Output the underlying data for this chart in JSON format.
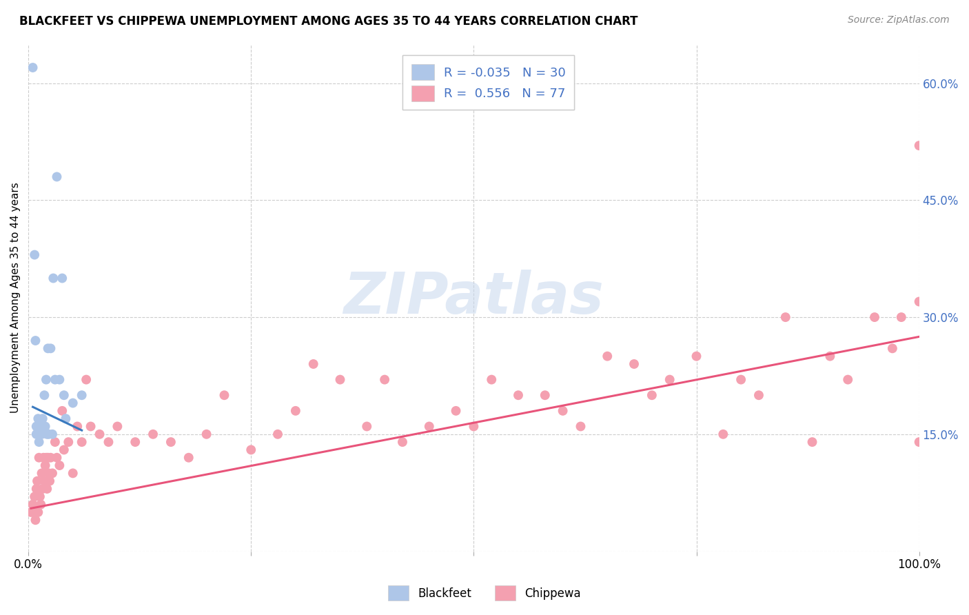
{
  "title": "BLACKFEET VS CHIPPEWA UNEMPLOYMENT AMONG AGES 35 TO 44 YEARS CORRELATION CHART",
  "source": "Source: ZipAtlas.com",
  "ylabel": "Unemployment Among Ages 35 to 44 years",
  "xlim": [
    0.0,
    1.0
  ],
  "ylim": [
    0.0,
    0.65
  ],
  "xticks": [
    0.0,
    0.25,
    0.5,
    0.75,
    1.0
  ],
  "xticklabels": [
    "0.0%",
    "",
    "",
    "",
    "100.0%"
  ],
  "yticks": [
    0.0,
    0.15,
    0.3,
    0.45,
    0.6
  ],
  "yticklabels": [
    "",
    "15.0%",
    "30.0%",
    "45.0%",
    "60.0%"
  ],
  "legend_r_blackfeet": "-0.035",
  "legend_n_blackfeet": "30",
  "legend_r_chippewa": "0.556",
  "legend_n_chippewa": "77",
  "blackfeet_color": "#aec6e8",
  "chippewa_color": "#f4a0b0",
  "trendline_blackfeet_color": "#3a7abf",
  "trendline_chippewa_color": "#e8547a",
  "background_color": "#ffffff",
  "watermark_text": "ZIPatlas",
  "blackfeet_x": [
    0.005,
    0.007,
    0.008,
    0.009,
    0.009,
    0.01,
    0.01,
    0.011,
    0.012,
    0.013,
    0.014,
    0.015,
    0.016,
    0.018,
    0.019,
    0.02,
    0.021,
    0.022,
    0.023,
    0.025,
    0.027,
    0.028,
    0.03,
    0.032,
    0.035,
    0.038,
    0.04,
    0.042,
    0.05,
    0.06
  ],
  "blackfeet_y": [
    0.62,
    0.38,
    0.27,
    0.16,
    0.15,
    0.16,
    0.15,
    0.17,
    0.14,
    0.16,
    0.16,
    0.15,
    0.17,
    0.2,
    0.16,
    0.22,
    0.15,
    0.26,
    0.15,
    0.26,
    0.15,
    0.35,
    0.22,
    0.48,
    0.22,
    0.35,
    0.2,
    0.17,
    0.19,
    0.2
  ],
  "chippewa_x": [
    0.003,
    0.005,
    0.006,
    0.007,
    0.008,
    0.009,
    0.01,
    0.011,
    0.012,
    0.013,
    0.014,
    0.015,
    0.016,
    0.017,
    0.018,
    0.019,
    0.02,
    0.021,
    0.022,
    0.023,
    0.024,
    0.025,
    0.027,
    0.03,
    0.032,
    0.035,
    0.038,
    0.04,
    0.045,
    0.05,
    0.055,
    0.06,
    0.065,
    0.07,
    0.08,
    0.09,
    0.1,
    0.12,
    0.14,
    0.16,
    0.18,
    0.2,
    0.22,
    0.25,
    0.28,
    0.3,
    0.32,
    0.35,
    0.38,
    0.4,
    0.42,
    0.45,
    0.48,
    0.5,
    0.52,
    0.55,
    0.58,
    0.6,
    0.62,
    0.65,
    0.68,
    0.7,
    0.72,
    0.75,
    0.78,
    0.8,
    0.82,
    0.85,
    0.88,
    0.9,
    0.92,
    0.95,
    0.97,
    0.98,
    1.0,
    1.0,
    1.0
  ],
  "chippewa_y": [
    0.05,
    0.06,
    0.05,
    0.07,
    0.04,
    0.08,
    0.09,
    0.05,
    0.12,
    0.07,
    0.06,
    0.1,
    0.08,
    0.12,
    0.09,
    0.11,
    0.12,
    0.08,
    0.12,
    0.1,
    0.09,
    0.12,
    0.1,
    0.14,
    0.12,
    0.11,
    0.18,
    0.13,
    0.14,
    0.1,
    0.16,
    0.14,
    0.22,
    0.16,
    0.15,
    0.14,
    0.16,
    0.14,
    0.15,
    0.14,
    0.12,
    0.15,
    0.2,
    0.13,
    0.15,
    0.18,
    0.24,
    0.22,
    0.16,
    0.22,
    0.14,
    0.16,
    0.18,
    0.16,
    0.22,
    0.2,
    0.2,
    0.18,
    0.16,
    0.25,
    0.24,
    0.2,
    0.22,
    0.25,
    0.15,
    0.22,
    0.2,
    0.3,
    0.14,
    0.25,
    0.22,
    0.3,
    0.26,
    0.3,
    0.14,
    0.32,
    0.52
  ],
  "bf_trend_x": [
    0.005,
    0.06
  ],
  "bf_trend_y": [
    0.185,
    0.155
  ],
  "ch_trend_x": [
    0.003,
    1.0
  ],
  "ch_trend_y": [
    0.055,
    0.275
  ]
}
